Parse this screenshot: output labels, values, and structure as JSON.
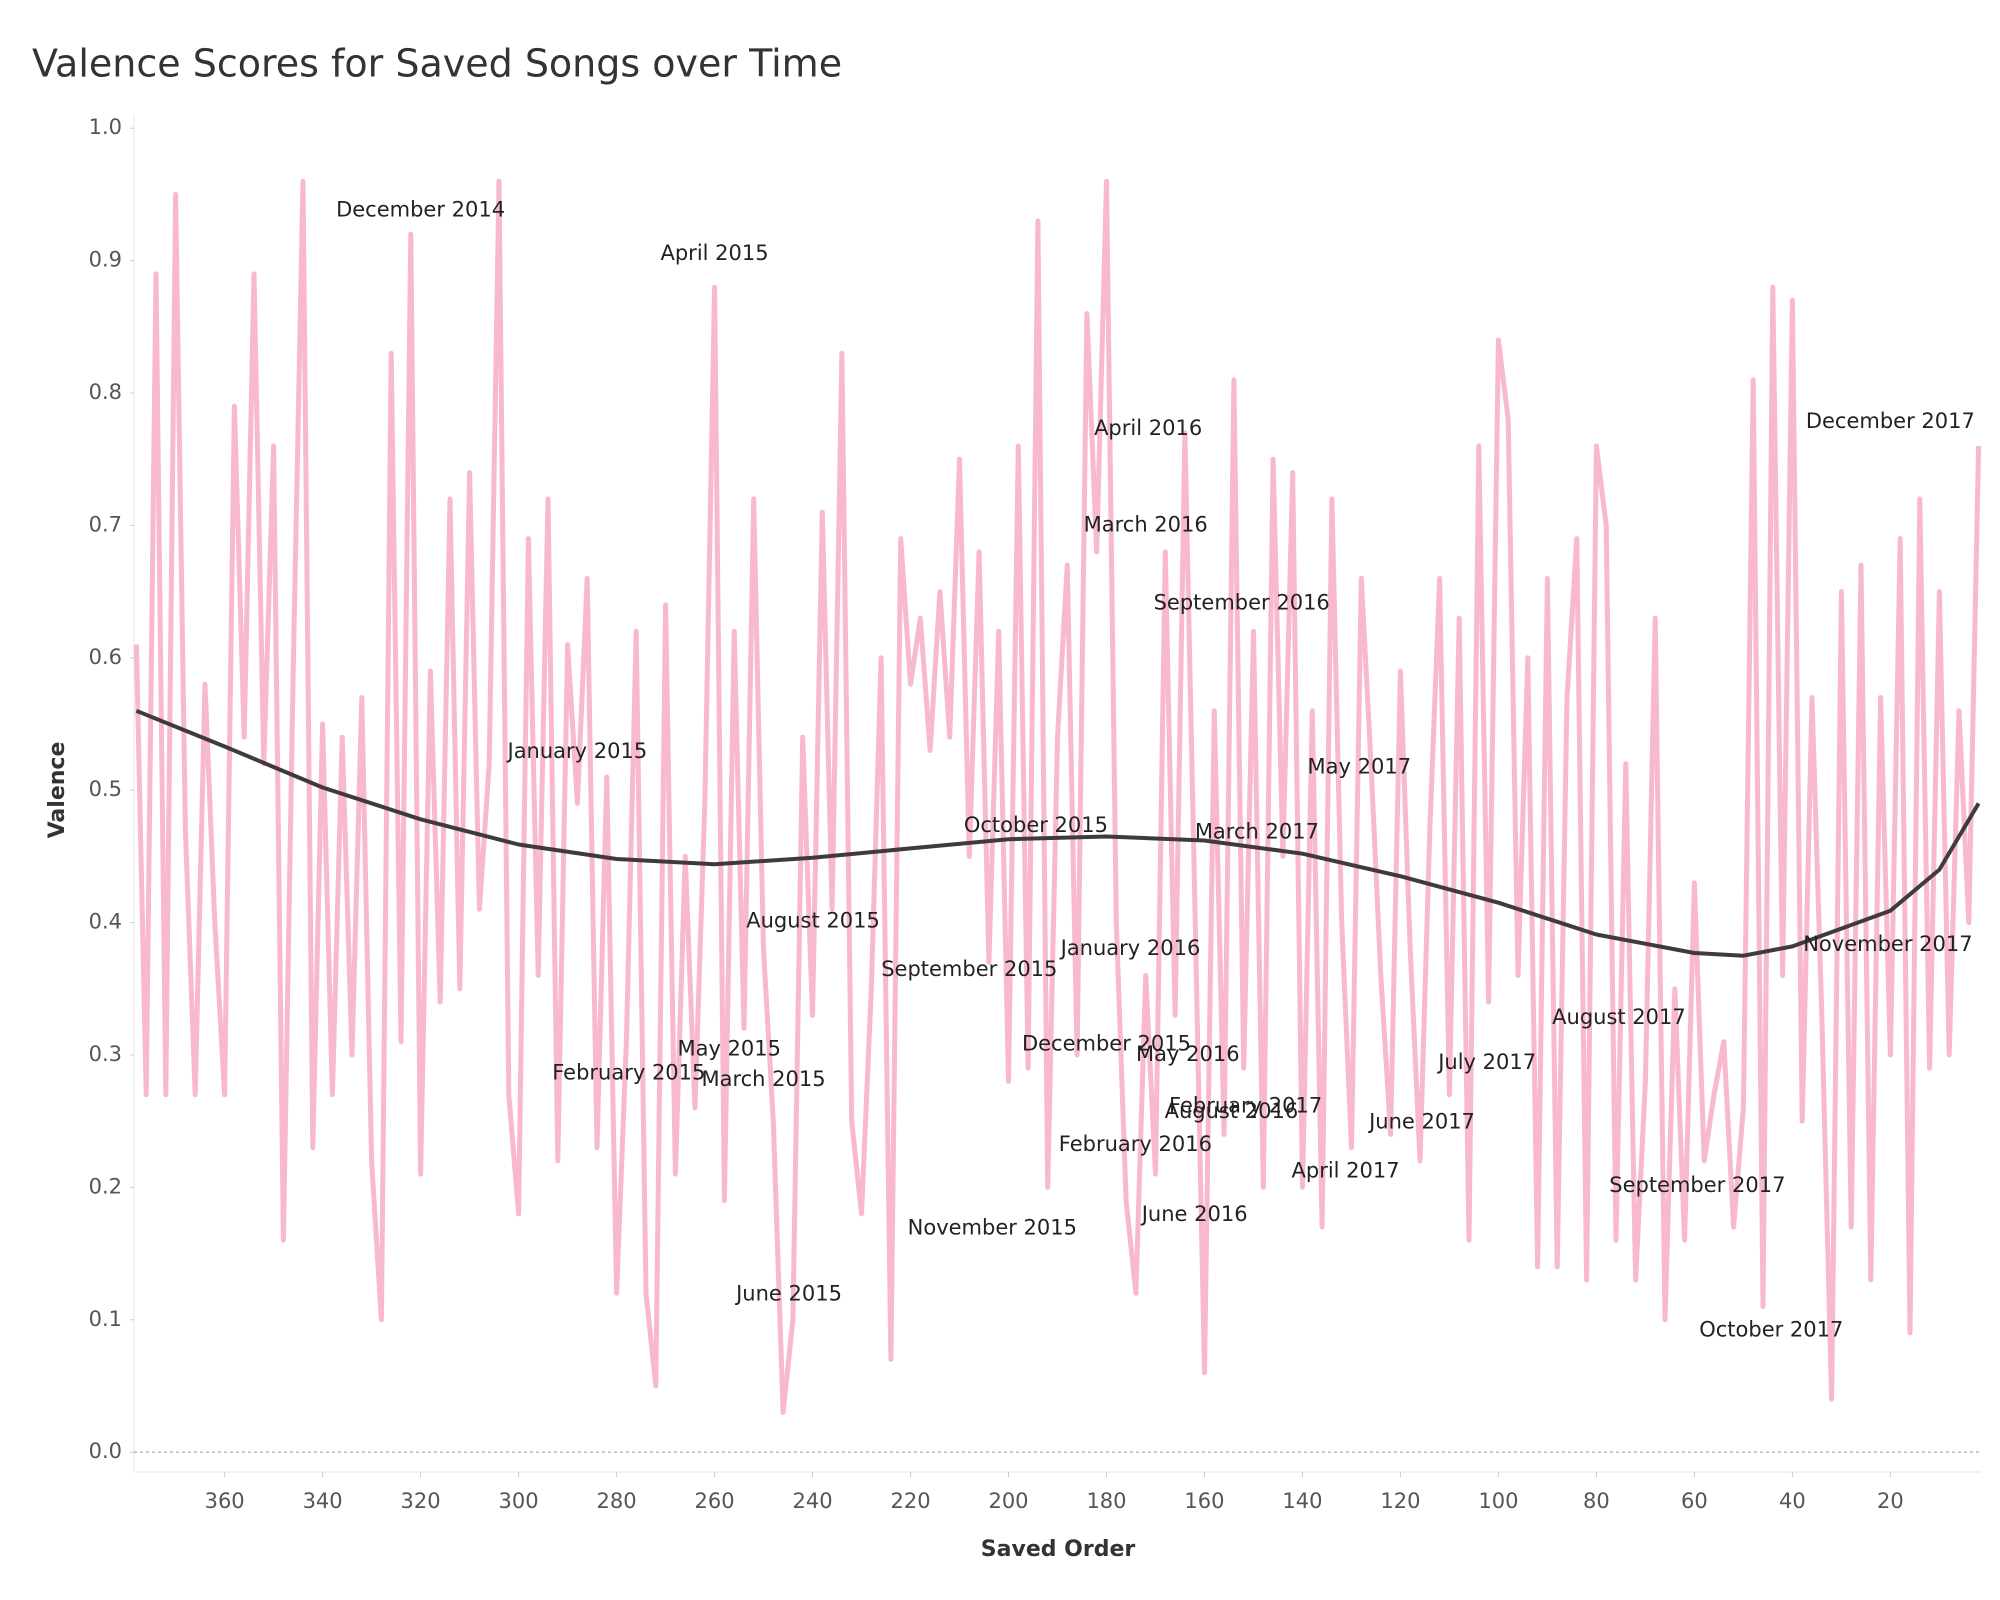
{
  "chart_data": {
    "type": "line",
    "title": "Valence Scores for Saved Songs over Time",
    "x_label": "Saved Order",
    "y_label": "Valence",
    "xlim": [
      378.5,
      1.5
    ],
    "xticks": [
      360,
      340,
      320,
      300,
      280,
      260,
      240,
      220,
      200,
      180,
      160,
      140,
      120,
      100,
      80,
      60,
      40,
      20
    ],
    "ylim": [
      -0.015,
      1.01
    ],
    "yticks": [
      {
        "value": 0,
        "label": "0.0"
      },
      0.1,
      0.2,
      0.3,
      0.4,
      0.5,
      0.6,
      0.7,
      0.8,
      0.9,
      {
        "value": 1,
        "label": "1.0"
      }
    ],
    "zero_line": true,
    "series": [
      {
        "color": "#f7b8d0",
        "x": [
          378,
          376,
          374,
          372,
          370,
          368,
          366,
          364,
          362,
          360,
          358,
          356,
          354,
          352,
          350,
          348,
          346,
          344,
          342,
          340,
          338,
          336,
          334,
          332,
          330,
          328,
          326,
          324,
          322,
          320,
          318,
          316,
          314,
          312,
          310,
          308,
          306,
          304,
          302,
          300,
          298,
          296,
          294,
          292,
          290,
          288,
          286,
          284,
          282,
          280,
          278,
          276,
          274,
          272,
          270,
          268,
          266,
          264,
          262,
          260,
          258,
          256,
          254,
          252,
          250,
          248,
          246,
          244,
          242,
          240,
          238,
          236,
          234,
          232,
          230,
          228,
          226,
          224,
          222,
          220,
          218,
          216,
          214,
          212,
          210,
          208,
          206,
          204,
          202,
          200,
          198,
          196,
          194,
          192,
          190,
          188,
          186,
          184,
          182,
          180,
          178,
          176,
          174,
          172,
          170,
          168,
          166,
          164,
          162,
          160,
          158,
          156,
          154,
          152,
          150,
          148,
          146,
          144,
          142,
          140,
          138,
          136,
          134,
          132,
          130,
          128,
          126,
          124,
          122,
          120,
          118,
          116,
          114,
          112,
          110,
          108,
          106,
          104,
          102,
          100,
          98,
          96,
          94,
          92,
          90,
          88,
          86,
          84,
          82,
          80,
          78,
          76,
          74,
          72,
          70,
          68,
          66,
          64,
          62,
          60,
          58,
          56,
          54,
          52,
          50,
          48,
          46,
          44,
          42,
          40,
          38,
          36,
          34,
          32,
          30,
          28,
          26,
          24,
          22,
          20,
          18,
          16,
          14,
          12,
          10,
          8,
          6,
          4,
          2
        ],
        "values": [
          0.61,
          0.27,
          0.89,
          0.27,
          0.95,
          0.47,
          0.27,
          0.58,
          0.4,
          0.27,
          0.79,
          0.54,
          0.89,
          0.52,
          0.76,
          0.16,
          0.59,
          0.96,
          0.23,
          0.55,
          0.27,
          0.54,
          0.3,
          0.57,
          0.22,
          0.1,
          0.83,
          0.31,
          0.92,
          0.21,
          0.59,
          0.34,
          0.72,
          0.35,
          0.74,
          0.41,
          0.52,
          0.96,
          0.27,
          0.18,
          0.69,
          0.36,
          0.72,
          0.22,
          0.61,
          0.49,
          0.66,
          0.23,
          0.51,
          0.12,
          0.31,
          0.62,
          0.12,
          0.05,
          0.64,
          0.21,
          0.45,
          0.26,
          0.49,
          0.88,
          0.19,
          0.62,
          0.32,
          0.72,
          0.38,
          0.25,
          0.03,
          0.1,
          0.54,
          0.33,
          0.71,
          0.41,
          0.83,
          0.25,
          0.18,
          0.35,
          0.6,
          0.07,
          0.69,
          0.58,
          0.63,
          0.53,
          0.65,
          0.54,
          0.75,
          0.45,
          0.68,
          0.37,
          0.62,
          0.28,
          0.76,
          0.29,
          0.93,
          0.2,
          0.54,
          0.67,
          0.3,
          0.86,
          0.68,
          0.96,
          0.4,
          0.19,
          0.12,
          0.36,
          0.21,
          0.68,
          0.33,
          0.77,
          0.42,
          0.06,
          0.56,
          0.24,
          0.81,
          0.29,
          0.62,
          0.2,
          0.75,
          0.45,
          0.74,
          0.2,
          0.56,
          0.17,
          0.72,
          0.4,
          0.23,
          0.66,
          0.52,
          0.36,
          0.24,
          0.59,
          0.38,
          0.22,
          0.47,
          0.66,
          0.27,
          0.63,
          0.16,
          0.76,
          0.34,
          0.84,
          0.78,
          0.36,
          0.6,
          0.14,
          0.66,
          0.14,
          0.57,
          0.69,
          0.13,
          0.76,
          0.7,
          0.16,
          0.52,
          0.13,
          0.28,
          0.63,
          0.1,
          0.35,
          0.16,
          0.43,
          0.22,
          0.27,
          0.31,
          0.17,
          0.26,
          0.81,
          0.11,
          0.88,
          0.36,
          0.87,
          0.25,
          0.57,
          0.33,
          0.04,
          0.65,
          0.17,
          0.67,
          0.13,
          0.57,
          0.3,
          0.69,
          0.09,
          0.72,
          0.29,
          0.65,
          0.3,
          0.56,
          0.4,
          0.76
        ]
      },
      {
        "color": "#3e3a3f",
        "x": [
          378,
          360,
          340,
          320,
          300,
          280,
          260,
          240,
          220,
          200,
          180,
          160,
          140,
          120,
          100,
          80,
          60,
          50,
          40,
          20,
          10,
          2
        ],
        "values": [
          0.56,
          0.533,
          0.502,
          0.478,
          0.459,
          0.448,
          0.444,
          0.449,
          0.456,
          0.463,
          0.465,
          0.462,
          0.452,
          0.435,
          0.415,
          0.391,
          0.377,
          0.375,
          0.382,
          0.409,
          0.44,
          0.49
        ]
      }
    ],
    "annotations": [
      {
        "text": "December 2014",
        "x": 320,
        "y": 0.938
      },
      {
        "text": "April 2015",
        "x": 260,
        "y": 0.905
      },
      {
        "text": "April 2016",
        "x": 171.5,
        "y": 0.773
      },
      {
        "text": "December 2017",
        "x": 20,
        "y": 0.778
      },
      {
        "text": "March 2016",
        "x": 172,
        "y": 0.7
      },
      {
        "text": "September 2016",
        "x": 152.4,
        "y": 0.641
      },
      {
        "text": "January 2015",
        "x": 288,
        "y": 0.529
      },
      {
        "text": "May 2017",
        "x": 128.4,
        "y": 0.517
      },
      {
        "text": "October 2015",
        "x": 194.4,
        "y": 0.473
      },
      {
        "text": "March 2017",
        "x": 149.3,
        "y": 0.468
      },
      {
        "text": "August 2015",
        "x": 239.9,
        "y": 0.401
      },
      {
        "text": "January 2016",
        "x": 175.1,
        "y": 0.38
      },
      {
        "text": "September 2015",
        "x": 208,
        "y": 0.364
      },
      {
        "text": "November 2017",
        "x": 20.5,
        "y": 0.383
      },
      {
        "text": "August 2017",
        "x": 75.4,
        "y": 0.328
      },
      {
        "text": "May 2015",
        "x": 257,
        "y": 0.304
      },
      {
        "text": "February 2015",
        "x": 277.5,
        "y": 0.286
      },
      {
        "text": "March 2015",
        "x": 250,
        "y": 0.281
      },
      {
        "text": "December 2015",
        "x": 180,
        "y": 0.308
      },
      {
        "text": "May 2016",
        "x": 163.4,
        "y": 0.3
      },
      {
        "text": "July 2017",
        "x": 102.3,
        "y": 0.294
      },
      {
        "text": "February 2017",
        "x": 151.6,
        "y": 0.261
      },
      {
        "text": "August 2016",
        "x": 154.5,
        "y": 0.257
      },
      {
        "text": "June 2017",
        "x": 115.6,
        "y": 0.249
      },
      {
        "text": "February 2016",
        "x": 174.1,
        "y": 0.232
      },
      {
        "text": "April 2017",
        "x": 131.2,
        "y": 0.212
      },
      {
        "text": "September 2017",
        "x": 59.4,
        "y": 0.201
      },
      {
        "text": "November 2015",
        "x": 203.3,
        "y": 0.169
      },
      {
        "text": "June 2016",
        "x": 162,
        "y": 0.179
      },
      {
        "text": "June 2015",
        "x": 244.8,
        "y": 0.119
      },
      {
        "text": "October 2017",
        "x": 44.3,
        "y": 0.092
      }
    ]
  }
}
